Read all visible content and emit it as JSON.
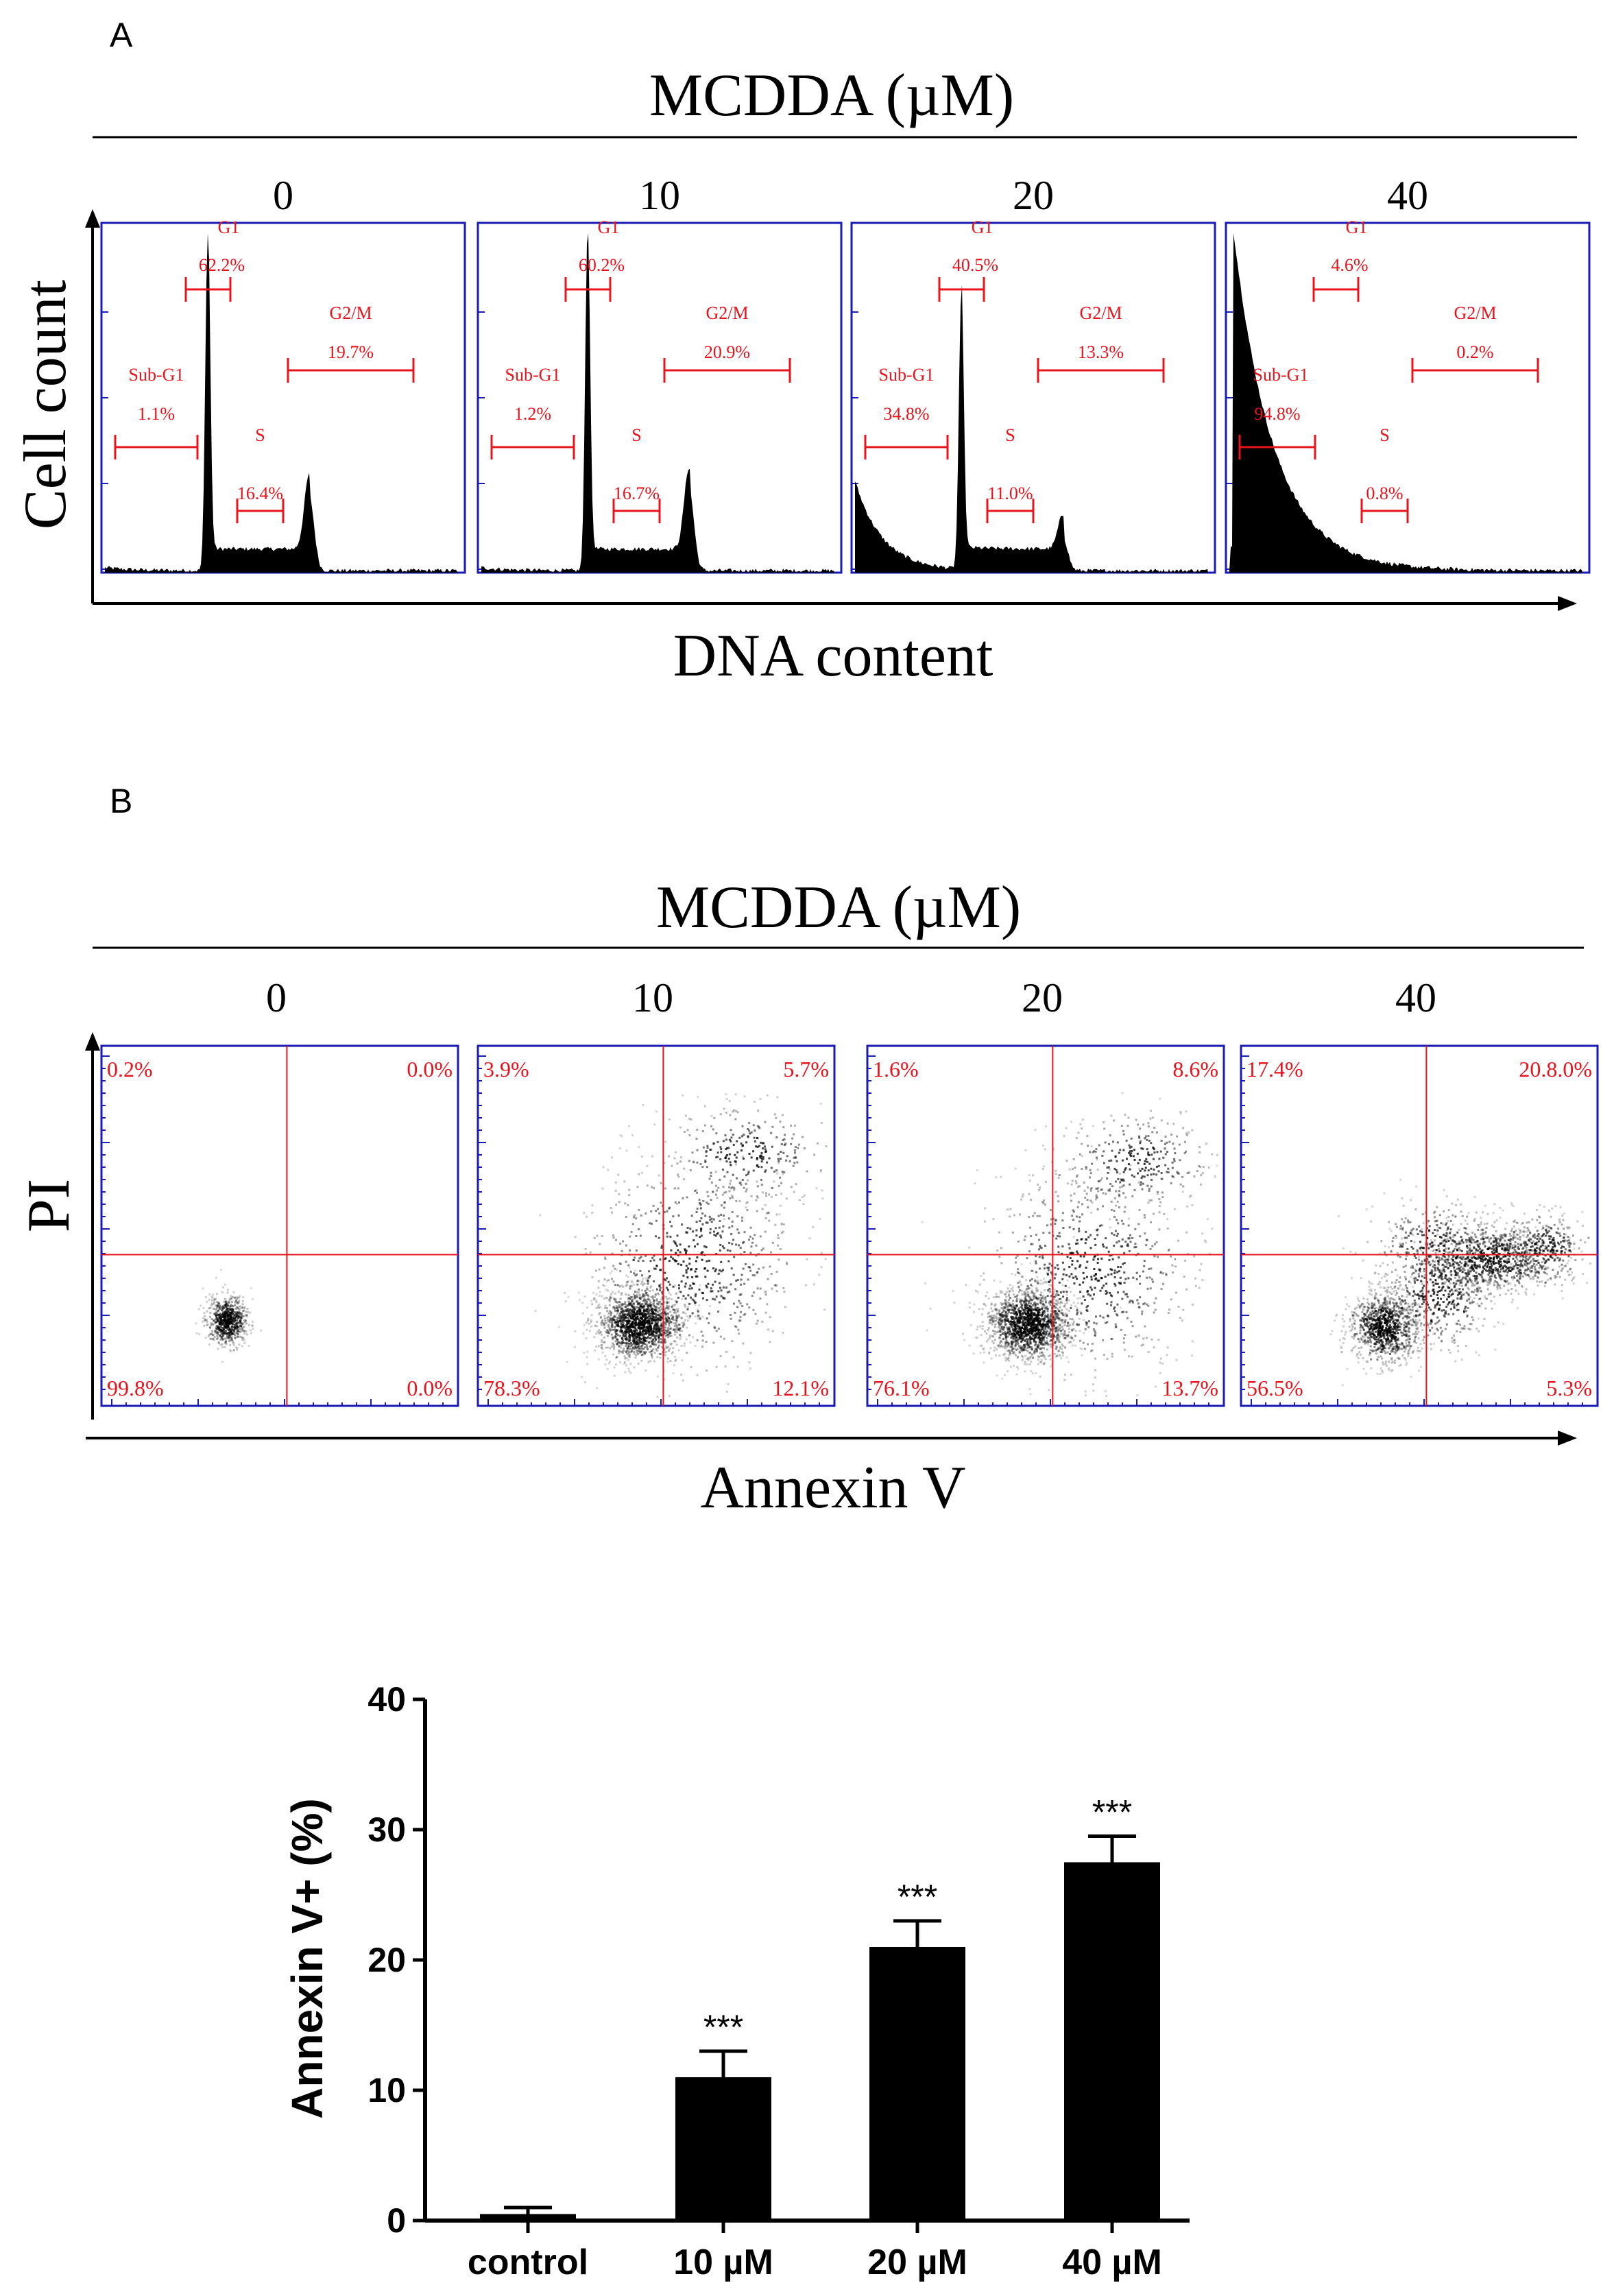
{
  "colors": {
    "gate": "#e8141c",
    "axis": "#1a1ab4",
    "ink": "#000000"
  },
  "panel_a": {
    "label": "A",
    "header": "MCDDA (µM)",
    "x_axis_label": "DNA content",
    "y_axis_label": "Cell count",
    "conditions": [
      {
        "dose": "0",
        "gates": {
          "subg1_name": "Sub-G1",
          "subg1": "1.1%",
          "g1_name": "G1",
          "g1": "62.2%",
          "s_name": "S",
          "s": "16.4%",
          "g2m_name": "G2/M",
          "g2m": "19.7%"
        }
      },
      {
        "dose": "10",
        "gates": {
          "subg1_name": "Sub-G1",
          "subg1": "1.2%",
          "g1_name": "G1",
          "g1": "60.2%",
          "s_name": "S",
          "s": "16.7%",
          "g2m_name": "G2/M",
          "g2m": "20.9%"
        }
      },
      {
        "dose": "20",
        "gates": {
          "subg1_name": "Sub-G1",
          "subg1": "34.8%",
          "g1_name": "G1",
          "g1": "40.5%",
          "s_name": "S",
          "s": "11.0%",
          "g2m_name": "G2/M",
          "g2m": "13.3%"
        }
      },
      {
        "dose": "40",
        "gates": {
          "subg1_name": "Sub-G1",
          "subg1": "94.8%",
          "g1_name": "G1",
          "g1": "4.6%",
          "s_name": "S",
          "s": "0.8%",
          "g2m_name": "G2/M",
          "g2m": "0.2%"
        }
      }
    ]
  },
  "panel_b": {
    "label": "B",
    "header": "MCDDA (µM)",
    "x_axis_label": "Annexin V",
    "y_axis_label": "PI",
    "conditions": [
      {
        "dose": "0",
        "quadrants": {
          "upper_left": "0.2%",
          "upper_right": "0.0%",
          "lower_left": "99.8%",
          "lower_right": "0.0%"
        }
      },
      {
        "dose": "10",
        "quadrants": {
          "upper_left": "3.9%",
          "upper_right": "5.7%",
          "lower_left": "78.3%",
          "lower_right": "12.1%"
        }
      },
      {
        "dose": "20",
        "quadrants": {
          "upper_left": "1.6%",
          "upper_right": "8.6%",
          "lower_left": "76.1%",
          "lower_right": "13.7%"
        }
      },
      {
        "dose": "40",
        "quadrants": {
          "upper_left": "17.4%",
          "upper_right": "20.8.0%",
          "lower_left": "56.5%",
          "lower_right": "5.3%"
        }
      }
    ]
  },
  "chart_data": {
    "type": "bar",
    "title": "",
    "xlabel": "",
    "ylabel": "Annexin V+ (%)",
    "categories": [
      "control",
      "10 µM",
      "20 µM",
      "40 µM"
    ],
    "values": [
      0.5,
      11,
      21,
      27.5
    ],
    "errors": [
      0.5,
      2,
      2,
      2
    ],
    "annotations": [
      "",
      "***",
      "***",
      "***"
    ],
    "ylim": [
      0,
      40
    ],
    "yticks": [
      0,
      10,
      20,
      30,
      40
    ],
    "grid": false
  }
}
